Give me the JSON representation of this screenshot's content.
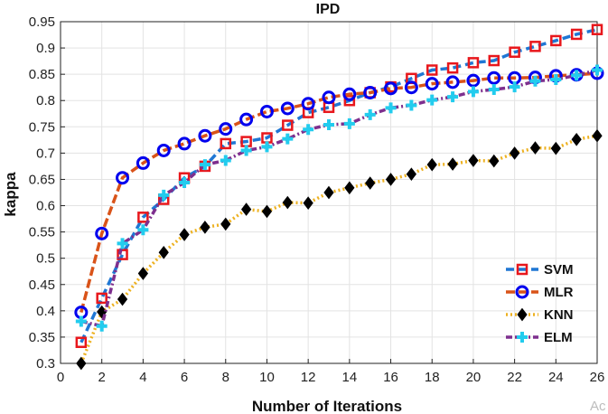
{
  "chart_data": {
    "type": "line",
    "title": "IPD",
    "xlabel": "Number of Iterations",
    "ylabel": "kappa",
    "xlim": [
      0,
      26
    ],
    "ylim": [
      0.3,
      0.95
    ],
    "xticks": [
      0,
      2,
      4,
      6,
      8,
      10,
      12,
      14,
      16,
      18,
      20,
      22,
      24,
      26
    ],
    "yticks": [
      0.3,
      0.35,
      0.4,
      0.45,
      0.5,
      0.55,
      0.6,
      0.65,
      0.7,
      0.75,
      0.8,
      0.85,
      0.9,
      0.95
    ],
    "grid": true,
    "legend_position": "bottom-right",
    "x": [
      1,
      2,
      3,
      4,
      5,
      6,
      7,
      8,
      9,
      10,
      11,
      12,
      13,
      14,
      15,
      16,
      17,
      18,
      19,
      20,
      21,
      22,
      23,
      24,
      25,
      26
    ],
    "series": [
      {
        "name": "SVM",
        "color": "#1f77d4",
        "marker": "square",
        "marker_color": "#e8171c",
        "values": [
          0.34,
          0.424,
          0.507,
          0.578,
          0.612,
          0.653,
          0.675,
          0.718,
          0.722,
          0.729,
          0.753,
          0.777,
          0.787,
          0.8,
          0.815,
          0.826,
          0.842,
          0.858,
          0.862,
          0.872,
          0.876,
          0.892,
          0.903,
          0.914,
          0.926,
          0.935
        ]
      },
      {
        "name": "MLR",
        "color": "#d95319",
        "marker": "circle",
        "marker_color": "#0000ee",
        "values": [
          0.397,
          0.547,
          0.653,
          0.681,
          0.705,
          0.718,
          0.733,
          0.746,
          0.764,
          0.779,
          0.785,
          0.794,
          0.806,
          0.812,
          0.815,
          0.823,
          0.825,
          0.832,
          0.835,
          0.838,
          0.843,
          0.843,
          0.844,
          0.847,
          0.849,
          0.852
        ]
      },
      {
        "name": "KNN",
        "color": "#edb120",
        "marker": "diamond",
        "marker_color": "#000000",
        "values": [
          0.3,
          0.398,
          0.422,
          0.471,
          0.511,
          0.545,
          0.559,
          0.565,
          0.593,
          0.589,
          0.606,
          0.605,
          0.625,
          0.634,
          0.643,
          0.65,
          0.66,
          0.678,
          0.679,
          0.686,
          0.685,
          0.7,
          0.71,
          0.709,
          0.726,
          0.733
        ]
      },
      {
        "name": "ELM",
        "color": "#7e2f8e",
        "marker": "plus",
        "marker_color": "#22ccee",
        "values": [
          0.38,
          0.371,
          0.528,
          0.554,
          0.62,
          0.644,
          0.678,
          0.686,
          0.705,
          0.712,
          0.727,
          0.745,
          0.754,
          0.756,
          0.773,
          0.786,
          0.791,
          0.801,
          0.807,
          0.817,
          0.821,
          0.826,
          0.837,
          0.84,
          0.848,
          0.858
        ]
      }
    ]
  },
  "watermark": "Ac"
}
